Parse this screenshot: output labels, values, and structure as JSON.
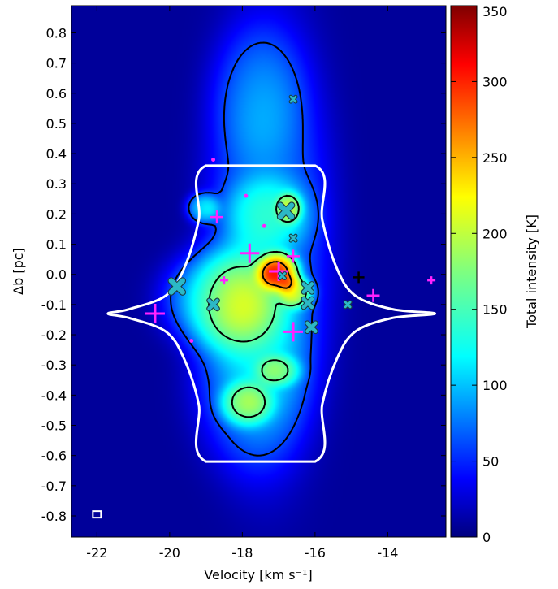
{
  "chart_data": {
    "type": "heatmap",
    "title": "",
    "xlabel": "Velocity [km s⁻¹]",
    "ylabel": "Δb [pc]",
    "colorbar_label": "Total intensity [K]",
    "xlim": [
      -22.7,
      -12.4
    ],
    "ylim": [
      -0.87,
      0.89
    ],
    "clim": [
      0,
      350
    ],
    "colormap": "jet",
    "x_ticks": [
      -22,
      -20,
      -18,
      -16,
      -14
    ],
    "x_tick_labels": [
      "-22",
      "-20",
      "-18",
      "-16",
      "-14"
    ],
    "y_ticks": [
      0.8,
      0.7,
      0.6,
      0.5,
      0.4,
      0.3,
      0.2,
      0.1,
      0.0,
      -0.1,
      -0.2,
      -0.3,
      -0.4,
      -0.5,
      -0.6,
      -0.7,
      -0.8
    ],
    "y_tick_labels": [
      "0.8",
      "0.7",
      "0.6",
      "0.5",
      "0.4",
      "0.3",
      "0.2",
      "0.1",
      "0.0",
      "-0.1",
      "-0.2",
      "-0.3",
      "-0.4",
      "-0.5",
      "-0.6",
      "-0.7",
      "-0.8"
    ],
    "c_ticks": [
      0,
      50,
      100,
      150,
      200,
      250,
      300,
      350
    ],
    "c_tick_labels": [
      "0",
      "50",
      "100",
      "150",
      "200",
      "250",
      "300",
      "350"
    ],
    "colors": {
      "cmap_stops": [
        "#00007f",
        "#0000ff",
        "#007fff",
        "#00ffff",
        "#7fff7f",
        "#ffff00",
        "#ff7f00",
        "#ff0000",
        "#7f0000"
      ],
      "model_outline": "#ffffff",
      "contours": "#000000",
      "magenta_markers": "#ff22ff",
      "cyan_markers": "#2cb8c6"
    },
    "emission_blobs": [
      {
        "x": -17.3,
        "y": 0.12,
        "sx": 1.7,
        "sy": 0.72,
        "value": 70
      },
      {
        "x": -17.6,
        "y": 0.6,
        "sx": 1.3,
        "sy": 0.22,
        "value": 30
      },
      {
        "x": -17.8,
        "y": -0.32,
        "sx": 1.6,
        "sy": 0.32,
        "value": 55
      },
      {
        "x": -18.5,
        "y": -0.08,
        "sx": 1.6,
        "sy": 0.16,
        "value": 110
      },
      {
        "x": -17.3,
        "y": 0.2,
        "sx": 1.2,
        "sy": 0.12,
        "value": 60
      },
      {
        "x": -17.0,
        "y": 0.01,
        "sx": 0.55,
        "sy": 0.06,
        "value": 180
      },
      {
        "x": -16.5,
        "y": -0.06,
        "sx": 0.45,
        "sy": 0.05,
        "value": 110
      },
      {
        "x": -17.9,
        "y": -0.43,
        "sx": 0.7,
        "sy": 0.07,
        "value": 90
      },
      {
        "x": -17.0,
        "y": -0.32,
        "sx": 0.6,
        "sy": 0.05,
        "value": 70
      },
      {
        "x": -19.1,
        "y": 0.22,
        "sx": 0.45,
        "sy": 0.05,
        "value": 80
      },
      {
        "x": -16.7,
        "y": 0.22,
        "sx": 0.35,
        "sy": 0.05,
        "value": 80
      }
    ],
    "contour_levels": [
      60,
      160,
      260
    ],
    "model_outline": [
      [
        -19.0,
        0.36
      ],
      [
        -16.0,
        0.36
      ],
      [
        -15.8,
        0.18
      ],
      [
        -15.4,
        0.02
      ],
      [
        -14.9,
        -0.07
      ],
      [
        -13.9,
        -0.115
      ],
      [
        -12.7,
        -0.13
      ],
      [
        -13.9,
        -0.145
      ],
      [
        -14.9,
        -0.19
      ],
      [
        -15.4,
        -0.28
      ],
      [
        -15.8,
        -0.43
      ],
      [
        -16.0,
        -0.62
      ],
      [
        -19.0,
        -0.62
      ],
      [
        -19.2,
        -0.43
      ],
      [
        -19.6,
        -0.28
      ],
      [
        -20.1,
        -0.19
      ],
      [
        -21.1,
        -0.145
      ],
      [
        -21.7,
        -0.13
      ],
      [
        -21.1,
        -0.115
      ],
      [
        -20.1,
        -0.07
      ],
      [
        -19.6,
        0.02
      ],
      [
        -19.2,
        0.18
      ]
    ],
    "magenta_markers": [
      {
        "x": -20.4,
        "y": -0.13,
        "size": "large"
      },
      {
        "x": -17.8,
        "y": 0.07,
        "size": "large"
      },
      {
        "x": -17.0,
        "y": 0.01,
        "size": "large"
      },
      {
        "x": -16.6,
        "y": -0.19,
        "size": "large"
      },
      {
        "x": -18.7,
        "y": 0.19,
        "size": "medium"
      },
      {
        "x": -16.6,
        "y": 0.06,
        "size": "medium"
      },
      {
        "x": -14.4,
        "y": -0.07,
        "size": "medium"
      },
      {
        "x": -18.5,
        "y": -0.02,
        "size": "small"
      },
      {
        "x": -12.8,
        "y": -0.02,
        "size": "small"
      },
      {
        "x": -18.8,
        "y": 0.38,
        "size": "dot"
      },
      {
        "x": -17.9,
        "y": 0.26,
        "size": "dot"
      },
      {
        "x": -17.4,
        "y": 0.16,
        "size": "dot"
      },
      {
        "x": -19.4,
        "y": -0.22,
        "size": "dot"
      }
    ],
    "dark_markers": [
      {
        "x": -14.8,
        "y": -0.01
      }
    ],
    "cyan_markers": [
      {
        "x": -19.8,
        "y": -0.04,
        "size": "large"
      },
      {
        "x": -16.8,
        "y": 0.21,
        "size": "large"
      },
      {
        "x": -18.8,
        "y": -0.1,
        "size": "medium"
      },
      {
        "x": -16.2,
        "y": -0.045,
        "size": "medium"
      },
      {
        "x": -16.2,
        "y": -0.095,
        "size": "medium"
      },
      {
        "x": -16.1,
        "y": -0.175,
        "size": "medium"
      },
      {
        "x": -16.9,
        "y": -0.005,
        "size": "small"
      },
      {
        "x": -16.6,
        "y": 0.12,
        "size": "small"
      },
      {
        "x": -15.1,
        "y": -0.1,
        "size": "small"
      },
      {
        "x": -16.6,
        "y": 0.58,
        "size": "small"
      }
    ],
    "beam_box": {
      "x": -22.0,
      "y": -0.795
    }
  }
}
